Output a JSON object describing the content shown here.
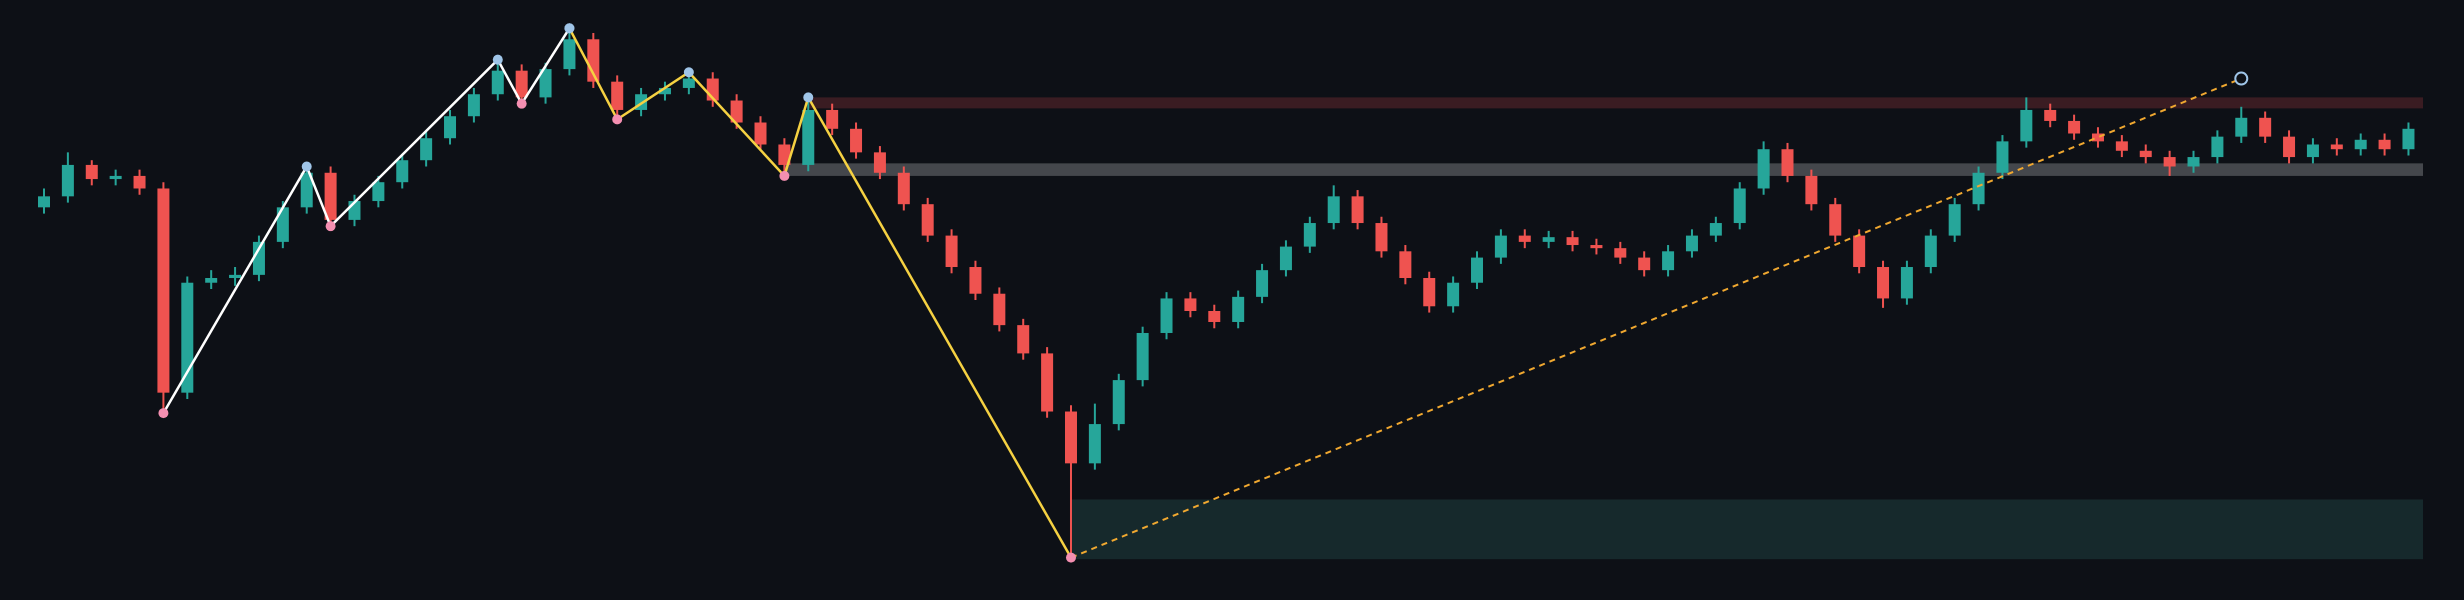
{
  "chart_data": {
    "type": "candlestick",
    "ylim": [
      0,
      382
    ],
    "xlim": [
      0,
      103
    ],
    "up_color": "#26a69a",
    "down_color": "#ef5350",
    "open": [
      250,
      257,
      277,
      268,
      270,
      262,
      132,
      202,
      205,
      207,
      228,
      250,
      272,
      242,
      254,
      266,
      280,
      294,
      308,
      322,
      337,
      320,
      338,
      357,
      330,
      312,
      322,
      326,
      332,
      318,
      304,
      290,
      277,
      312,
      300,
      285,
      272,
      252,
      232,
      212,
      195,
      175,
      157,
      120,
      87,
      112,
      140,
      170,
      192,
      184,
      177,
      193,
      210,
      225,
      240,
      257,
      240,
      222,
      205,
      187,
      202,
      218,
      232,
      228,
      231,
      226,
      224,
      218,
      210,
      222,
      232,
      240,
      262,
      287,
      270,
      252,
      232,
      212,
      192,
      212,
      232,
      252,
      272,
      292,
      312,
      305,
      297,
      292,
      286,
      282,
      276,
      282,
      295,
      307,
      295,
      282,
      290,
      287,
      293,
      287
    ],
    "close": [
      257,
      277,
      268,
      270,
      262,
      132,
      202,
      205,
      207,
      228,
      250,
      272,
      242,
      254,
      266,
      280,
      294,
      308,
      322,
      337,
      320,
      338,
      357,
      330,
      312,
      322,
      326,
      332,
      318,
      304,
      290,
      277,
      312,
      300,
      285,
      272,
      252,
      232,
      212,
      195,
      175,
      157,
      120,
      87,
      112,
      140,
      170,
      192,
      184,
      177,
      193,
      210,
      225,
      240,
      257,
      240,
      222,
      205,
      187,
      202,
      218,
      232,
      228,
      231,
      226,
      224,
      218,
      210,
      222,
      232,
      240,
      262,
      287,
      270,
      252,
      232,
      212,
      192,
      212,
      232,
      252,
      272,
      292,
      312,
      305,
      297,
      292,
      286,
      282,
      276,
      282,
      295,
      307,
      295,
      282,
      290,
      287,
      293,
      287,
      300
    ],
    "high": [
      262,
      285,
      280,
      274,
      274,
      266,
      206,
      210,
      212,
      232,
      254,
      276,
      276,
      258,
      270,
      284,
      298,
      312,
      326,
      344,
      341,
      342,
      364,
      361,
      334,
      326,
      330,
      336,
      336,
      322,
      308,
      294,
      320,
      316,
      304,
      289,
      276,
      256,
      236,
      216,
      199,
      179,
      161,
      124,
      125,
      144,
      174,
      196,
      196,
      188,
      197,
      214,
      229,
      244,
      264,
      261,
      244,
      226,
      209,
      206,
      222,
      236,
      236,
      235,
      235,
      230,
      228,
      222,
      226,
      236,
      244,
      266,
      292,
      291,
      274,
      256,
      236,
      216,
      216,
      236,
      256,
      276,
      296,
      320,
      316,
      309,
      301,
      296,
      290,
      286,
      286,
      299,
      314,
      311,
      299,
      294,
      294,
      297,
      297,
      304
    ],
    "low": [
      246,
      253,
      264,
      264,
      258,
      119,
      128,
      198,
      200,
      203,
      224,
      246,
      238,
      238,
      250,
      262,
      276,
      290,
      304,
      318,
      316,
      316,
      334,
      326,
      306,
      308,
      318,
      322,
      314,
      300,
      286,
      270,
      273,
      296,
      281,
      268,
      248,
      228,
      208,
      191,
      171,
      153,
      116,
      27,
      83,
      108,
      136,
      166,
      180,
      173,
      173,
      189,
      206,
      221,
      236,
      236,
      218,
      201,
      183,
      183,
      198,
      214,
      224,
      224,
      222,
      220,
      214,
      206,
      206,
      218,
      228,
      236,
      258,
      266,
      248,
      228,
      208,
      186,
      188,
      208,
      228,
      248,
      268,
      288,
      301,
      293,
      288,
      282,
      278,
      270,
      272,
      278,
      291,
      291,
      278,
      278,
      283,
      283,
      283,
      283
    ],
    "zigzags": [
      {
        "color": "#ffffff",
        "x": [
          5,
          11,
          12,
          19,
          20,
          22
        ],
        "values": [
          119,
          276,
          238,
          344,
          316,
          364
        ]
      },
      {
        "color": "#f5d142",
        "x": [
          22,
          24,
          27,
          31,
          32,
          43
        ],
        "values": [
          364,
          306,
          336,
          270,
          320,
          27
        ]
      }
    ],
    "trendline": {
      "color": "#f0a830",
      "x": [
        43,
        92
      ],
      "values": [
        27,
        332
      ]
    },
    "zones": [
      {
        "color": "#3a1c22",
        "x_start": 32,
        "low": 313,
        "high": 320
      },
      {
        "color": "#44474c",
        "x_start": 31,
        "low": 270,
        "high": 278
      },
      {
        "color": "#16292c",
        "x_start": 43,
        "low": 26,
        "high": 64
      }
    ]
  }
}
